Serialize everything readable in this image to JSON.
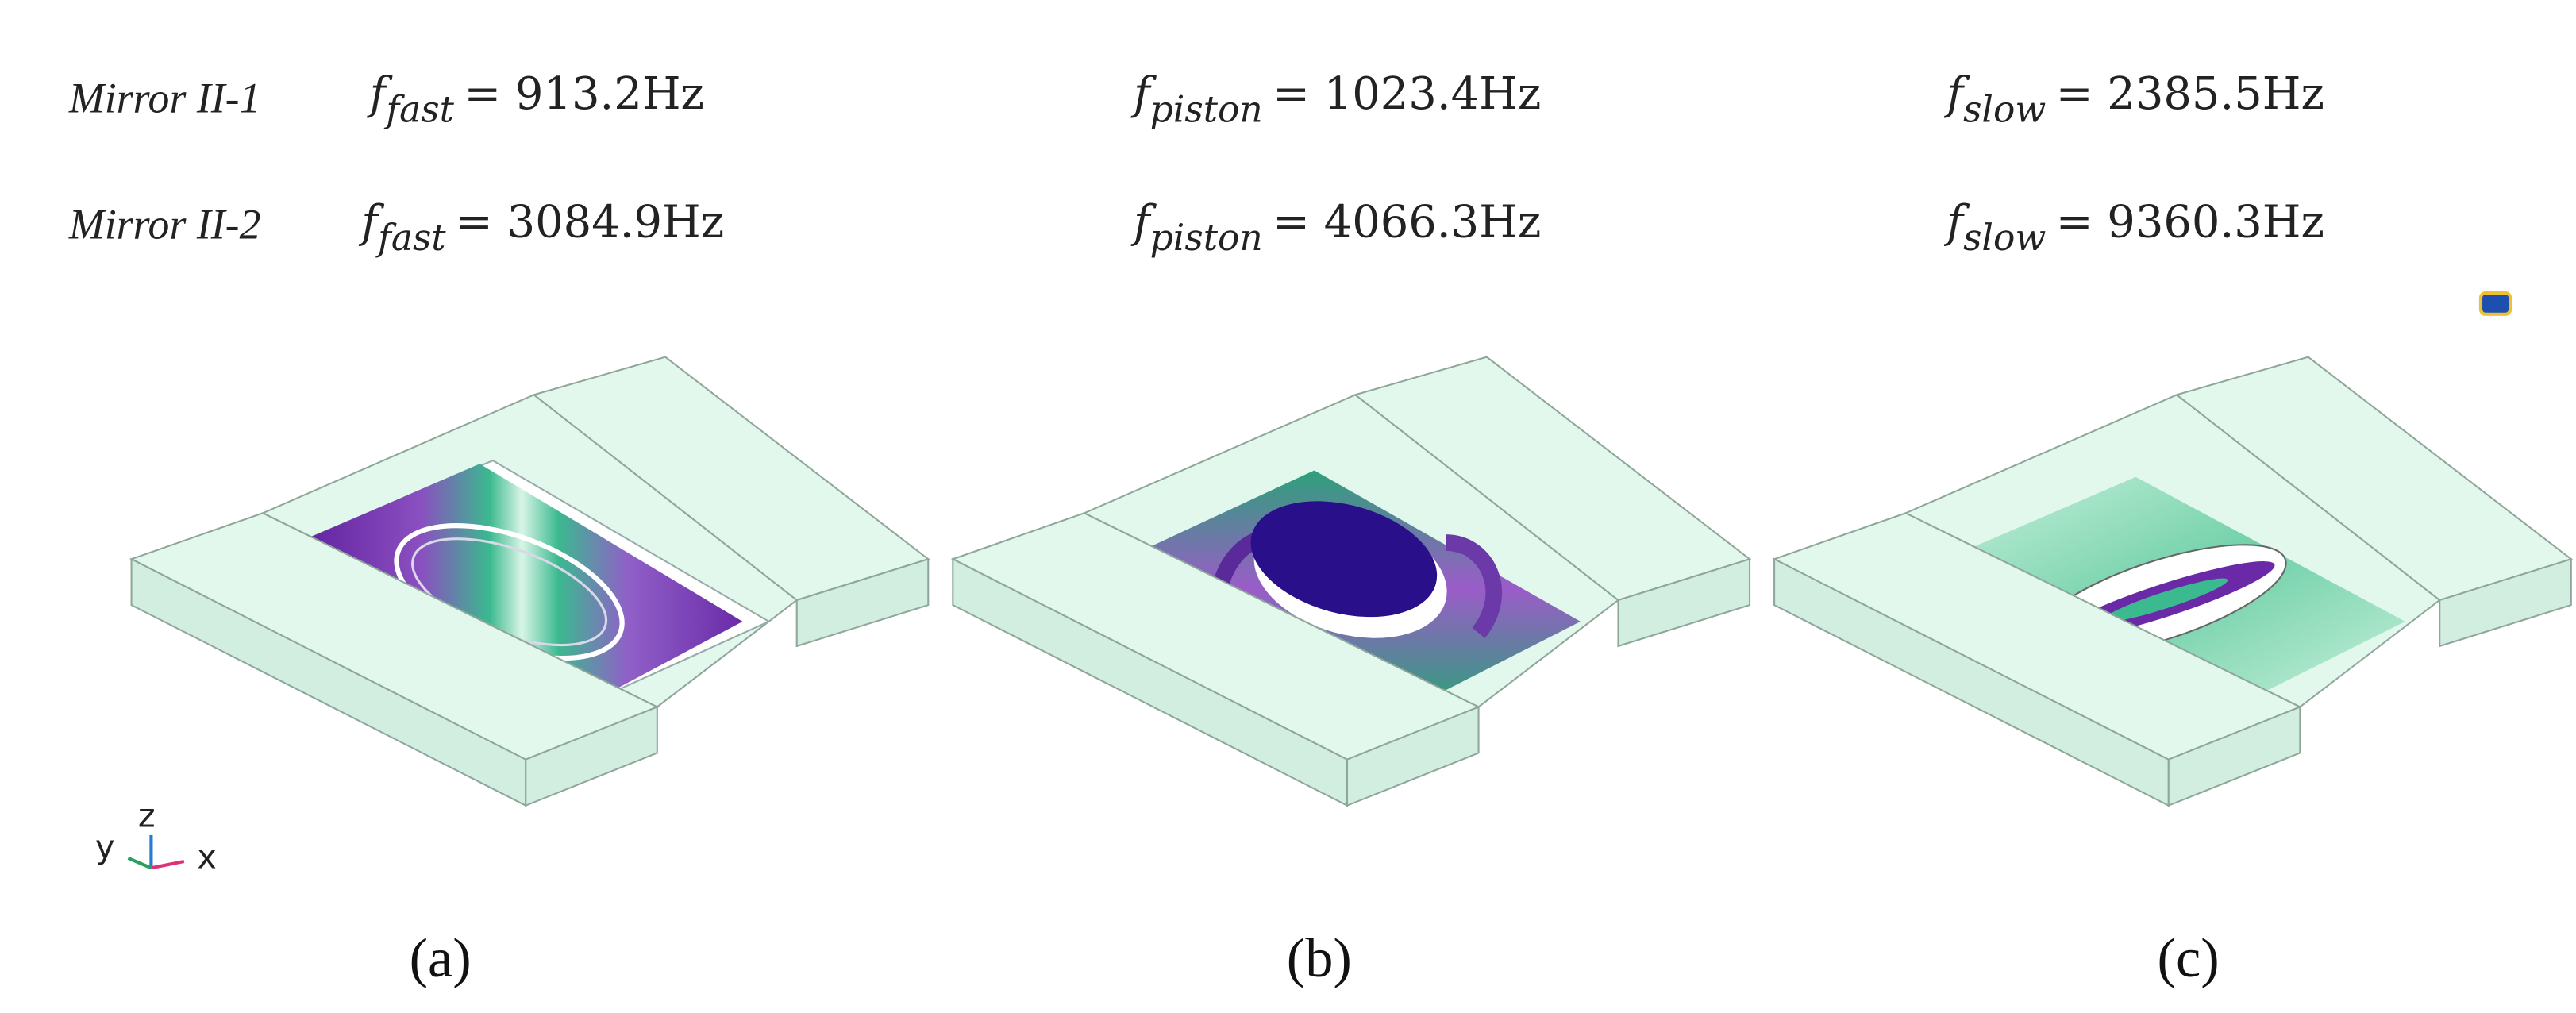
{
  "rows": [
    {
      "label": "Mirror II-1",
      "modes": [
        {
          "symbol": "f",
          "subscript": "fast",
          "rhs": "= 913.2Hz"
        },
        {
          "symbol": "f",
          "subscript": "piston",
          "rhs": "= 1023.4Hz"
        },
        {
          "symbol": "f",
          "subscript": "slow",
          "rhs": "= 2385.5Hz"
        }
      ]
    },
    {
      "label": "Mirror II-2",
      "modes": [
        {
          "symbol": "f",
          "subscript": "fast",
          "rhs": "= 3084.9Hz"
        },
        {
          "symbol": "f",
          "subscript": "piston",
          "rhs": "= 4066.3Hz"
        },
        {
          "symbol": "f",
          "subscript": "slow",
          "rhs": "= 9360.3Hz"
        }
      ]
    }
  ],
  "panels": [
    "(a)",
    "(b)",
    "(c)"
  ],
  "axes": {
    "x": "x",
    "y": "y",
    "z": "z"
  }
}
